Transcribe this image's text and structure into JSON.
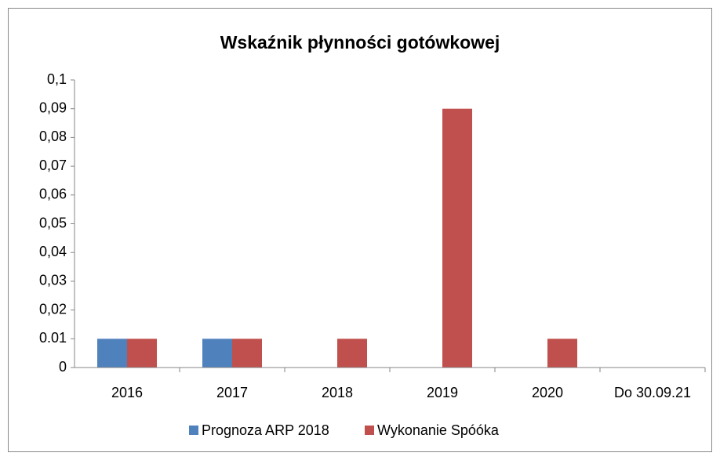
{
  "chart_data": {
    "type": "bar",
    "title": "Wskaźnik płynności gotówkowej",
    "categories": [
      "2016",
      "2017",
      "2018",
      "2019",
      "2020",
      "Do 30.09.21"
    ],
    "series": [
      {
        "name": "Prognoza ARP 2018",
        "color": "#4f81bd",
        "values": [
          0.01,
          0.01,
          null,
          null,
          null,
          null
        ]
      },
      {
        "name": "Wykonanie Spóóka",
        "color": "#c0504d",
        "values": [
          0.01,
          0.01,
          0.01,
          0.09,
          0.01,
          null
        ]
      }
    ],
    "ylim": [
      0,
      0.1
    ],
    "yticks": [
      0,
      0.01,
      {
        "value": 0.02,
        "label": "0,02"
      },
      {
        "value": 0.03,
        "label": "0,03"
      },
      {
        "value": 0.04,
        "label": "0,04"
      },
      {
        "value": 0.05,
        "label": "0,05"
      },
      {
        "value": 0.06,
        "label": "0,06"
      },
      {
        "value": 0.07,
        "label": "0,07"
      },
      {
        "value": 0.08,
        "label": "0,08"
      },
      {
        "value": 0.09,
        "label": "0,09"
      },
      {
        "value": 0.1,
        "label": "0,1"
      }
    ],
    "grid": false,
    "legend": "bottom"
  }
}
